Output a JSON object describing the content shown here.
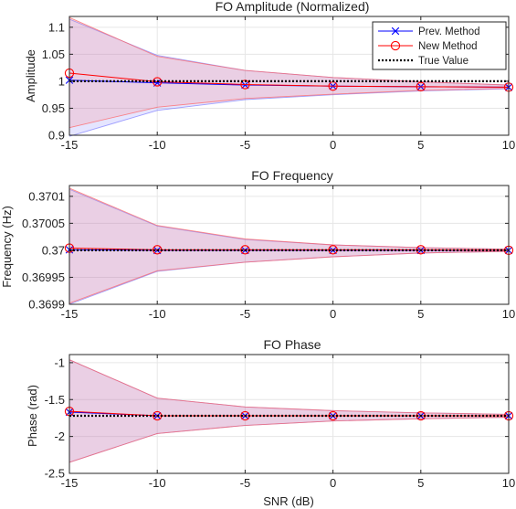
{
  "chart_data": [
    {
      "type": "line",
      "title": "FO Amplitude (Normalized)",
      "xlabel": "",
      "ylabel": "Amplitude",
      "x": [
        -15,
        -10,
        -5,
        0,
        5,
        10
      ],
      "xlim": [
        -15,
        10
      ],
      "ylim": [
        0.9,
        1.12
      ],
      "xticks": [
        "-15",
        "-10",
        "-5",
        "0",
        "5",
        "10"
      ],
      "yticks": [
        {
          "v": 0.9,
          "label": "0.9"
        },
        {
          "v": 0.95,
          "label": "0.95"
        },
        {
          "v": 1.0,
          "label": "1"
        },
        {
          "v": 1.05,
          "label": "1.05"
        },
        {
          "v": 1.1,
          "label": "1.1"
        }
      ],
      "grid": true,
      "series": [
        {
          "name": "Prev. Method",
          "color": "#0000ff",
          "marker": "x",
          "values": [
            1.002,
            0.997,
            0.993,
            0.991,
            0.99,
            0.989
          ],
          "band_lower": [
            0.898,
            0.946,
            0.966,
            0.975,
            0.982,
            0.986
          ],
          "band_upper": [
            1.115,
            1.048,
            1.02,
            1.007,
            0.999,
            0.993
          ]
        },
        {
          "name": "New Method",
          "color": "#ff0000",
          "marker": "o",
          "values": [
            1.015,
            0.999,
            0.994,
            0.991,
            0.99,
            0.989
          ],
          "band_lower": [
            0.914,
            0.952,
            0.968,
            0.976,
            0.983,
            0.987
          ],
          "band_upper": [
            1.118,
            1.046,
            1.02,
            1.007,
            0.999,
            0.993
          ]
        },
        {
          "name": "True Value",
          "color": "#000000",
          "marker": "none",
          "dotted": true,
          "values": [
            1,
            1,
            1,
            1,
            1,
            1
          ]
        }
      ],
      "legend": {
        "position": "top-right",
        "entries": [
          "Prev. Method",
          "New Method",
          "True Value"
        ]
      }
    },
    {
      "type": "line",
      "title": "FO Frequency",
      "xlabel": "",
      "ylabel": "Frequency (Hz)",
      "x": [
        -15,
        -10,
        -5,
        0,
        5,
        10
      ],
      "xlim": [
        -15,
        10
      ],
      "ylim": [
        0.3699,
        0.37012
      ],
      "xticks": [
        "-15",
        "-10",
        "-5",
        "0",
        "5",
        "10"
      ],
      "yticks": [
        {
          "v": 0.3699,
          "label": "0.3699"
        },
        {
          "v": 0.36995,
          "label": "0.36995"
        },
        {
          "v": 0.37,
          "label": "0.37"
        },
        {
          "v": 0.37005,
          "label": "0.37005"
        },
        {
          "v": 0.3701,
          "label": "0.3701"
        }
      ],
      "grid": true,
      "series": [
        {
          "name": "Prev. Method",
          "color": "#0000ff",
          "marker": "x",
          "values": [
            0.370001,
            0.37,
            0.37,
            0.37,
            0.37,
            0.37
          ],
          "band_lower": [
            0.3699,
            0.369961,
            0.369978,
            0.369988,
            0.369995,
            0.369998
          ],
          "band_upper": [
            0.370113,
            0.370045,
            0.37002,
            0.37001,
            0.370005,
            0.370002
          ]
        },
        {
          "name": "New Method",
          "color": "#ff0000",
          "marker": "o",
          "values": [
            0.370004,
            0.370001,
            0.370001,
            0.370001,
            0.370001,
            0.37
          ],
          "band_lower": [
            0.369902,
            0.369962,
            0.369978,
            0.369988,
            0.369995,
            0.369998
          ],
          "band_upper": [
            0.370115,
            0.370046,
            0.370021,
            0.37001,
            0.370005,
            0.370002
          ]
        },
        {
          "name": "True Value",
          "color": "#000000",
          "marker": "none",
          "dotted": true,
          "values": [
            0.37,
            0.37,
            0.37,
            0.37,
            0.37,
            0.37
          ]
        }
      ]
    },
    {
      "type": "line",
      "title": "FO Phase",
      "xlabel": "SNR (dB)",
      "ylabel": "Phase (rad)",
      "x": [
        -15,
        -10,
        -5,
        0,
        5,
        10
      ],
      "xlim": [
        -15,
        10
      ],
      "ylim": [
        -2.5,
        -0.89
      ],
      "xticks": [
        "-15",
        "-10",
        "-5",
        "0",
        "5",
        "10"
      ],
      "yticks": [
        {
          "v": -2.5,
          "label": "-2.5"
        },
        {
          "v": -2.0,
          "label": "-2"
        },
        {
          "v": -1.5,
          "label": "-1.5"
        },
        {
          "v": -1.0,
          "label": "-1"
        }
      ],
      "grid": true,
      "series": [
        {
          "name": "Prev. Method",
          "color": "#0000ff",
          "marker": "x",
          "values": [
            -1.67,
            -1.72,
            -1.72,
            -1.72,
            -1.72,
            -1.72
          ],
          "band_lower": [
            -2.35,
            -1.96,
            -1.85,
            -1.79,
            -1.76,
            -1.74
          ],
          "band_upper": [
            -0.96,
            -1.48,
            -1.6,
            -1.65,
            -1.68,
            -1.7
          ]
        },
        {
          "name": "New Method",
          "color": "#ff0000",
          "marker": "o",
          "values": [
            -1.66,
            -1.72,
            -1.72,
            -1.72,
            -1.72,
            -1.72
          ],
          "band_lower": [
            -2.35,
            -1.96,
            -1.85,
            -1.79,
            -1.76,
            -1.74
          ],
          "band_upper": [
            -0.96,
            -1.48,
            -1.6,
            -1.65,
            -1.68,
            -1.7
          ]
        },
        {
          "name": "True Value",
          "color": "#000000",
          "marker": "none",
          "dotted": true,
          "values": [
            -1.72,
            -1.72,
            -1.72,
            -1.72,
            -1.72,
            -1.72
          ]
        }
      ]
    }
  ]
}
